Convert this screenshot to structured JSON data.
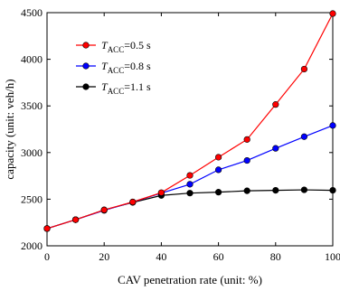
{
  "chart_data": {
    "type": "line",
    "title": "",
    "xlabel": "CAV penetration rate (unit: %)",
    "ylabel": "capacity (unit: veh/h)",
    "xlim": [
      0,
      100
    ],
    "ylim": [
      2000,
      4500
    ],
    "xticks": [
      0,
      20,
      40,
      60,
      80,
      100
    ],
    "yticks": [
      2000,
      2500,
      3000,
      3500,
      4000,
      4500
    ],
    "x": [
      0,
      10,
      20,
      30,
      40,
      50,
      60,
      70,
      80,
      90,
      100
    ],
    "legend_position": "top-left",
    "grid": false,
    "series": [
      {
        "name_main": "T",
        "name_sub": "ACC",
        "name_suffix": "=0.5 s",
        "color": "#ff0000",
        "marker_fill": "#ff0000",
        "values": [
          2185,
          2280,
          2385,
          2470,
          2570,
          2755,
          2950,
          3140,
          3515,
          3895,
          4490
        ]
      },
      {
        "name_main": "T",
        "name_sub": "ACC",
        "name_suffix": "=0.8 s",
        "color": "#0000ff",
        "marker_fill": "#0000ff",
        "values": [
          2185,
          2280,
          2380,
          2470,
          2565,
          2660,
          2815,
          2915,
          3045,
          3170,
          3290
        ]
      },
      {
        "name_main": "T",
        "name_sub": "ACC",
        "name_suffix": "=1.1 s",
        "color": "#000000",
        "marker_fill": "#000000",
        "values": [
          2185,
          2280,
          2385,
          2465,
          2540,
          2565,
          2575,
          2590,
          2595,
          2600,
          2595
        ]
      }
    ]
  }
}
